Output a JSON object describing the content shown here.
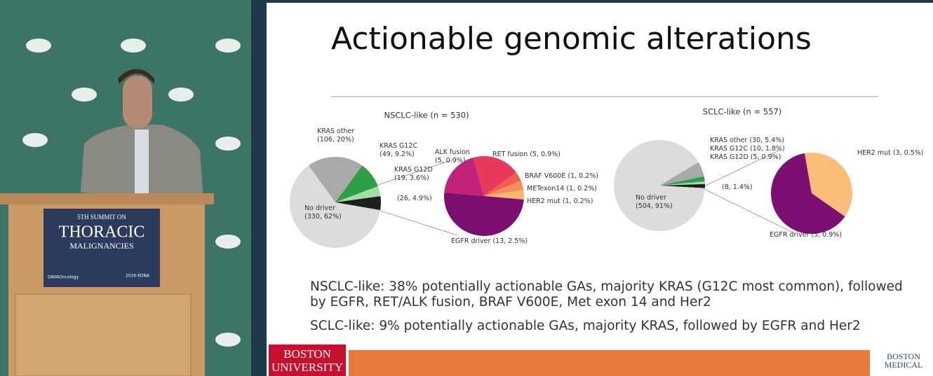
{
  "slide": {
    "title": "Actionable genomic alterations",
    "paragraphs": [
      [
        "NSCLC-like: 38% potentially actionable GAs, majority KRAS (G12C most common), followed",
        "by EGFR, RET/ALK fusion, BRAF V600E, Met exon 14 and Her2"
      ],
      [
        "SCLC-like: 9% potentially actionable GAs, majority KRAS, followed by EGFR and Her2"
      ]
    ]
  },
  "chart_data": [
    {
      "type": "pie",
      "title": "NSCLC-like (n = 530)",
      "categories": [
        "KRAS other",
        "KRAS G12C",
        "KRAS G12D",
        null,
        "No driver"
      ],
      "values": [
        106,
        49,
        19,
        26,
        330
      ],
      "value_labels": [
        "(106, 20%)",
        "(49, 9.2%)",
        "(19, 3.6%)",
        "(26, 4.9%)",
        "(330, 62%)"
      ],
      "colors": [
        "#a9a9a9",
        "#2e9e45",
        "#a3dba9",
        "#1e1e1e",
        "#dcdcdc"
      ]
    },
    {
      "type": "pie",
      "categories": [
        "ALK fusion",
        "RET fusion",
        "BRAF V600E",
        "METexon14",
        "HER2 mut",
        "EGFR driver"
      ],
      "values": [
        5,
        5,
        1,
        1,
        1,
        13
      ],
      "value_labels": [
        "(5, 0.9%)",
        "(5, 0.9%)",
        "(1, 0.2%)",
        "(1, 0.2%)",
        "(1, 0.2%)",
        "(13, 2.5%)"
      ],
      "colors": [
        "#c2237a",
        "#e8395c",
        "#f0604c",
        "#f58d5c",
        "#f9b870",
        "#7b0e6f"
      ]
    },
    {
      "type": "pie",
      "title": "SCLC-like (n = 557)",
      "categories": [
        "KRAS other",
        "KRAS G12C",
        "KRAS G12D",
        null,
        "No driver"
      ],
      "values": [
        30,
        10,
        5,
        8,
        504
      ],
      "value_labels": [
        "(30, 5.4%)",
        "(10, 1.8%)",
        "(5, 0.9%)",
        "(8, 1.4%)",
        "(504, 91%)"
      ],
      "colors": [
        "#a9a9a9",
        "#2e9e45",
        "#a3dba9",
        "#1e1e1e",
        "#dcdcdc"
      ]
    },
    {
      "type": "pie",
      "categories": [
        "HER2 mut",
        "EGFR driver"
      ],
      "values": [
        3,
        5
      ],
      "value_labels": [
        "(3, 0.5%)",
        "(5, 0.9%)"
      ],
      "colors": [
        "#fbbd78",
        "#7d0f72"
      ]
    }
  ],
  "podium": {
    "lines": [
      "5TH SUMMIT ON",
      "THORACIC",
      "MALIGNANCIES"
    ],
    "sponsor": "DAVAOncology",
    "event": "2026 KONA"
  },
  "logos": {
    "left": [
      "BOSTON",
      "UNIVERSITY"
    ],
    "right": [
      "BOSTON",
      "MEDICAL"
    ]
  }
}
